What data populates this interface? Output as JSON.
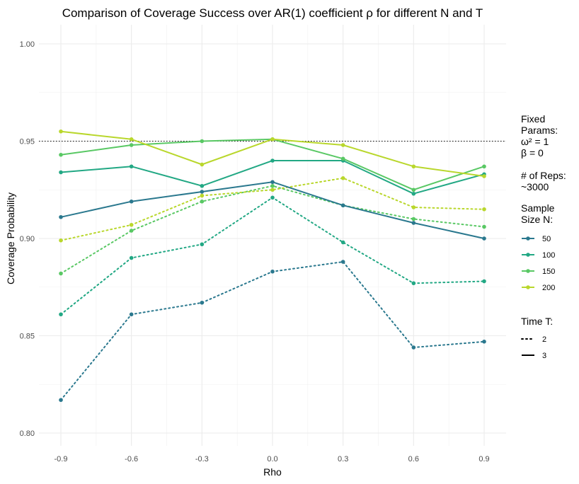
{
  "chart_data": {
    "type": "line",
    "title": "Comparison of Coverage Success over AR(1) coefficient ρ for different N and T",
    "xlabel": "Rho",
    "ylabel": "Coverage Probability",
    "x": [
      -0.9,
      -0.6,
      -0.3,
      0.0,
      0.3,
      0.6,
      0.9
    ],
    "x_tick_labels": [
      "-0.9",
      "-0.6",
      "-0.3",
      "0.0",
      "0.3",
      "0.6",
      "0.9"
    ],
    "y_ticks": [
      0.8,
      0.85,
      0.9,
      0.95,
      1.0
    ],
    "y_tick_labels": [
      "0.80",
      "0.85",
      "0.90",
      "0.95",
      "1.00"
    ],
    "xlim": [
      -0.9,
      0.9
    ],
    "ylim": [
      0.8,
      1.0
    ],
    "grid": true,
    "reference_line": {
      "y": 0.95,
      "style": "dotted"
    },
    "colors": {
      "50": "#2a788e",
      "100": "#22a884",
      "150": "#59c864",
      "200": "#b9d72c"
    },
    "legend_notes": {
      "lines": [
        "Fixed",
        "Params:",
        "ω² = 1",
        "β = 0",
        "",
        "# of Reps:",
        "~3000"
      ]
    },
    "legend_size": {
      "title": [
        "Sample",
        "Size N:"
      ],
      "entries": [
        {
          "label": "50",
          "color": "#2a788e"
        },
        {
          "label": "100",
          "color": "#22a884"
        },
        {
          "label": "150",
          "color": "#59c864"
        },
        {
          "label": "200",
          "color": "#b9d72c"
        }
      ]
    },
    "legend_time": {
      "title": "Time T:",
      "entries": [
        {
          "label": "2",
          "linetype": "dotted"
        },
        {
          "label": "3",
          "linetype": "solid"
        }
      ]
    },
    "series": [
      {
        "name": "N=50, T=2",
        "N": "50",
        "T": "2",
        "values": [
          0.817,
          0.861,
          0.867,
          0.883,
          0.888,
          0.844,
          0.847
        ]
      },
      {
        "name": "N=100, T=2",
        "N": "100",
        "T": "2",
        "values": [
          0.861,
          0.89,
          0.897,
          0.921,
          0.898,
          0.877,
          0.878
        ]
      },
      {
        "name": "N=150, T=2",
        "N": "150",
        "T": "2",
        "values": [
          0.882,
          0.904,
          0.919,
          0.927,
          0.917,
          0.91,
          0.906
        ]
      },
      {
        "name": "N=200, T=2",
        "N": "200",
        "T": "2",
        "values": [
          0.899,
          0.907,
          0.922,
          0.925,
          0.931,
          0.916,
          0.915
        ]
      },
      {
        "name": "N=50, T=3",
        "N": "50",
        "T": "3",
        "values": [
          0.911,
          0.919,
          0.924,
          0.929,
          0.917,
          0.908,
          0.9
        ]
      },
      {
        "name": "N=100, T=3",
        "N": "100",
        "T": "3",
        "values": [
          0.934,
          0.937,
          0.927,
          0.94,
          0.94,
          0.923,
          0.933
        ]
      },
      {
        "name": "N=150, T=3",
        "N": "150",
        "T": "3",
        "values": [
          0.943,
          0.948,
          0.95,
          0.951,
          0.941,
          0.925,
          0.937
        ]
      },
      {
        "name": "N=200, T=3",
        "N": "200",
        "T": "3",
        "values": [
          0.955,
          0.951,
          0.938,
          0.951,
          0.948,
          0.937,
          0.932
        ]
      }
    ]
  }
}
